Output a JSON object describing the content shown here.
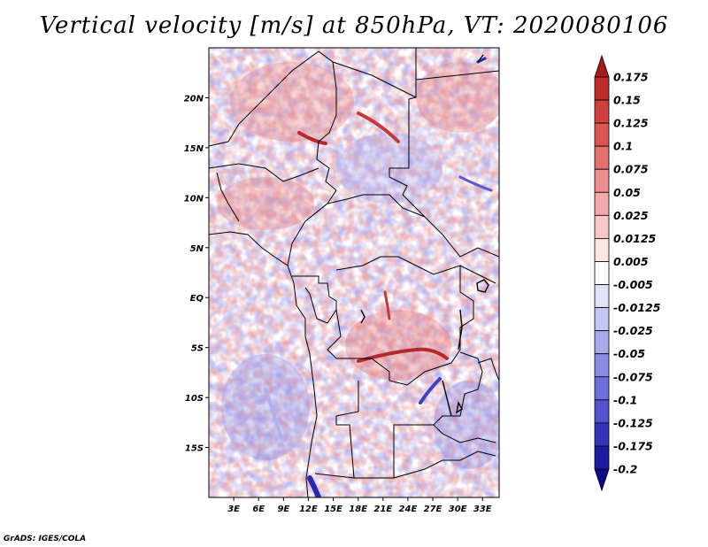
{
  "title": "Vertical velocity [m/s] at 850hPa, VT: 2020080106",
  "credit": "GrADS: IGES/COLA",
  "map": {
    "lon_range": [
      0,
      35
    ],
    "lat_range": [
      -20,
      25
    ],
    "x_ticks": [
      "3E",
      "6E",
      "9E",
      "12E",
      "15E",
      "18E",
      "21E",
      "24E",
      "27E",
      "30E",
      "33E"
    ],
    "y_ticks": [
      "20N",
      "15N",
      "10N",
      "5N",
      "EQ",
      "5S",
      "10S",
      "15S"
    ],
    "x_tick_values": [
      3,
      6,
      9,
      12,
      15,
      18,
      21,
      24,
      27,
      30,
      33
    ],
    "y_tick_values": [
      20,
      15,
      10,
      5,
      0,
      -5,
      -10,
      -15
    ]
  },
  "colorbar": {
    "labels": [
      "0.175",
      "0.15",
      "0.125",
      "0.1",
      "0.075",
      "0.05",
      "0.025",
      "0.0125",
      "0.005",
      "-0.005",
      "-0.0125",
      "-0.025",
      "-0.05",
      "-0.075",
      "-0.1",
      "-0.125",
      "-0.175",
      "-0.2"
    ],
    "colors": [
      "#a51a1a",
      "#bd2b2b",
      "#cf3f3f",
      "#dc5555",
      "#e47070",
      "#ec8c8c",
      "#f2a9a9",
      "#f8c7c7",
      "#fce4e4",
      "#ffffff",
      "#e2e2fb",
      "#c6c6f5",
      "#a9a9ee",
      "#8c8ce6",
      "#6f6fdb",
      "#5252cd",
      "#3434b9",
      "#1c1ca2",
      "#0b0b8a"
    ]
  }
}
